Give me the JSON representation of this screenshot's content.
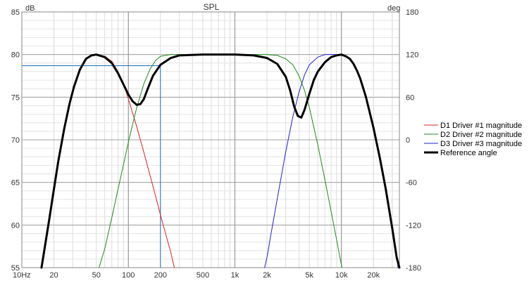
{
  "chart_data": {
    "type": "line",
    "title": "SPL",
    "y_unit": "dB",
    "y2_unit": "deg",
    "x_scale": "log",
    "xlim": [
      10,
      35000
    ],
    "ylim": [
      55,
      85
    ],
    "y2lim": [
      -180,
      180
    ],
    "grid": true,
    "legend_position": "right",
    "x_ticks": [
      {
        "value": 10,
        "label": "10Hz"
      },
      {
        "value": 20,
        "label": "20"
      },
      {
        "value": 50,
        "label": "50"
      },
      {
        "value": 100,
        "label": "100"
      },
      {
        "value": 200,
        "label": "200"
      },
      {
        "value": 500,
        "label": "500"
      },
      {
        "value": 1000,
        "label": "1k"
      },
      {
        "value": 2000,
        "label": "2k"
      },
      {
        "value": 5000,
        "label": "5k"
      },
      {
        "value": 10000,
        "label": "10k"
      },
      {
        "value": 20000,
        "label": "20k"
      }
    ],
    "y_ticks": [
      {
        "value": 85,
        "label": "85"
      },
      {
        "value": 80,
        "label": "80"
      },
      {
        "value": 75,
        "label": "75"
      },
      {
        "value": 70,
        "label": "70"
      },
      {
        "value": 65,
        "label": "65"
      },
      {
        "value": 60,
        "label": "60"
      },
      {
        "value": 55,
        "label": "55"
      }
    ],
    "y2_ticks": [
      {
        "value": 180,
        "label": "180"
      },
      {
        "value": 120,
        "label": "120"
      },
      {
        "value": 60,
        "label": "60"
      },
      {
        "value": 0,
        "label": "0"
      },
      {
        "value": -60,
        "label": "-60"
      },
      {
        "value": -120,
        "label": "-120"
      },
      {
        "value": -180,
        "label": "-180"
      }
    ],
    "cursor": {
      "x": 200,
      "y": 78.7,
      "color": "#1f6fb5"
    },
    "series": [
      {
        "name": "D1 Driver #1 magnitude",
        "color": "#e02020",
        "width": 1,
        "points": [
          [
            15.3,
            55
          ],
          [
            16,
            56.5
          ],
          [
            18,
            60.5
          ],
          [
            20,
            64.2
          ],
          [
            22,
            67.5
          ],
          [
            25,
            71.3
          ],
          [
            28,
            74.2
          ],
          [
            31,
            76.3
          ],
          [
            35,
            78.2
          ],
          [
            40,
            79.5
          ],
          [
            45,
            79.9
          ],
          [
            50,
            80
          ],
          [
            60,
            79.8
          ],
          [
            70,
            79.2
          ],
          [
            80,
            78
          ],
          [
            90,
            76.6
          ],
          [
            100,
            74.8
          ],
          [
            120,
            71.5
          ],
          [
            140,
            68.5
          ],
          [
            160,
            65.8
          ],
          [
            180,
            63.4
          ],
          [
            200,
            61.2
          ],
          [
            220,
            59.3
          ],
          [
            250,
            56.8
          ],
          [
            270,
            55
          ]
        ]
      },
      {
        "name": "D2 Driver #2 magnitude",
        "color": "#1f8a1f",
        "width": 1,
        "points": [
          [
            53,
            55
          ],
          [
            60,
            57.2
          ],
          [
            70,
            60.9
          ],
          [
            80,
            64.2
          ],
          [
            90,
            67.1
          ],
          [
            100,
            69.7
          ],
          [
            110,
            71.9
          ],
          [
            120,
            73.8
          ],
          [
            140,
            76.6
          ],
          [
            160,
            78.3
          ],
          [
            180,
            79.3
          ],
          [
            200,
            79.8
          ],
          [
            250,
            80
          ],
          [
            500,
            80
          ],
          [
            1000,
            80
          ],
          [
            2000,
            80
          ],
          [
            2500,
            79.9
          ],
          [
            3000,
            79.5
          ],
          [
            3500,
            78.8
          ],
          [
            4000,
            77.5
          ],
          [
            4500,
            75.8
          ],
          [
            5000,
            73.8
          ],
          [
            6000,
            69.4
          ],
          [
            7000,
            65.3
          ],
          [
            8000,
            61.6
          ],
          [
            9000,
            58.3
          ],
          [
            10000,
            55.3
          ],
          [
            10100,
            55
          ]
        ]
      },
      {
        "name": "D3 Driver #3 magnitude",
        "color": "#2020d0",
        "width": 1,
        "points": [
          [
            1900,
            55
          ],
          [
            2000,
            56.2
          ],
          [
            2200,
            59.2
          ],
          [
            2500,
            63.1
          ],
          [
            2800,
            66.5
          ],
          [
            3000,
            68.6
          ],
          [
            3500,
            72.7
          ],
          [
            4000,
            75.6
          ],
          [
            4500,
            77.6
          ],
          [
            5000,
            78.8
          ],
          [
            6000,
            79.7
          ],
          [
            7000,
            80
          ],
          [
            9000,
            80
          ],
          [
            10000,
            80
          ],
          [
            11000,
            79.8
          ],
          [
            12000,
            79.5
          ],
          [
            13000,
            78.9
          ],
          [
            14000,
            78.1
          ],
          [
            15000,
            77.2
          ],
          [
            17000,
            75
          ],
          [
            20000,
            71.4
          ],
          [
            23000,
            67.8
          ],
          [
            26000,
            64.3
          ],
          [
            30000,
            59.6
          ],
          [
            33000,
            56.2
          ],
          [
            34000,
            55
          ]
        ]
      },
      {
        "name": "Reference angle",
        "color": "#000000",
        "width": 3,
        "points": [
          [
            15.3,
            55
          ],
          [
            16,
            56.5
          ],
          [
            18,
            60.5
          ],
          [
            20,
            64.2
          ],
          [
            22,
            67.5
          ],
          [
            25,
            71.3
          ],
          [
            28,
            74.2
          ],
          [
            31,
            76.3
          ],
          [
            35,
            78.2
          ],
          [
            40,
            79.5
          ],
          [
            45,
            79.9
          ],
          [
            50,
            80
          ],
          [
            60,
            79.7
          ],
          [
            70,
            79
          ],
          [
            80,
            77.8
          ],
          [
            90,
            76.5
          ],
          [
            100,
            75.3
          ],
          [
            110,
            74.5
          ],
          [
            120,
            74.1
          ],
          [
            130,
            74.2
          ],
          [
            140,
            74.8
          ],
          [
            150,
            75.8
          ],
          [
            170,
            77.5
          ],
          [
            200,
            78.8
          ],
          [
            250,
            79.6
          ],
          [
            300,
            79.9
          ],
          [
            500,
            80
          ],
          [
            1000,
            80
          ],
          [
            1500,
            79.9
          ],
          [
            2000,
            79.6
          ],
          [
            2500,
            78.9
          ],
          [
            3000,
            77.4
          ],
          [
            3300,
            75.8
          ],
          [
            3600,
            73.9
          ],
          [
            3900,
            72.8
          ],
          [
            4200,
            72.6
          ],
          [
            4500,
            73.5
          ],
          [
            5000,
            75.4
          ],
          [
            5500,
            77
          ],
          [
            6000,
            78
          ],
          [
            7000,
            79.1
          ],
          [
            8000,
            79.7
          ],
          [
            9000,
            79.9
          ],
          [
            10000,
            80
          ],
          [
            11000,
            79.8
          ],
          [
            12000,
            79.5
          ],
          [
            13000,
            78.9
          ],
          [
            14000,
            78.1
          ],
          [
            15000,
            77.2
          ],
          [
            17000,
            75
          ],
          [
            20000,
            71.4
          ],
          [
            23000,
            67.8
          ],
          [
            26000,
            64.3
          ],
          [
            30000,
            59.6
          ],
          [
            33000,
            56.2
          ],
          [
            35000,
            55
          ]
        ]
      }
    ]
  }
}
